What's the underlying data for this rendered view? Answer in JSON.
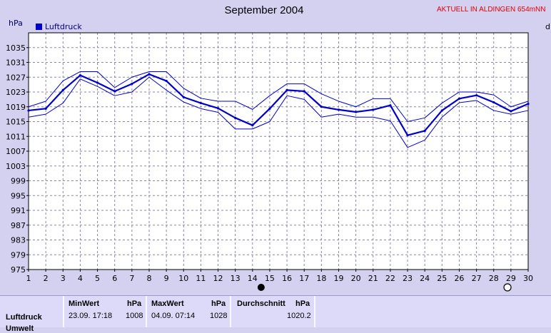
{
  "header": {
    "title": "September 2004",
    "brand": "AKTUELL IN ALDINGEN 654mNN",
    "edge_letter": "d"
  },
  "chart_data": {
    "type": "line",
    "title": "September 2004",
    "ylabel": "hPa",
    "xlabel": "",
    "ylim": [
      975,
      1039
    ],
    "yticks": [
      975,
      979,
      983,
      987,
      991,
      995,
      999,
      1003,
      1007,
      1011,
      1015,
      1019,
      1023,
      1027,
      1031,
      1035
    ],
    "x": [
      1,
      2,
      3,
      4,
      5,
      6,
      7,
      8,
      9,
      10,
      11,
      12,
      13,
      14,
      15,
      16,
      17,
      18,
      19,
      20,
      21,
      22,
      23,
      24,
      25,
      26,
      27,
      28,
      29,
      30
    ],
    "xlim": [
      1,
      30
    ],
    "legend": "top-left",
    "grid": true,
    "series": [
      {
        "name": "Luftdruck",
        "role": "mean",
        "color": "#0000cc",
        "values": [
          1018,
          1018.5,
          1023.5,
          1027.5,
          1025.5,
          1023.2,
          1025.2,
          1027.8,
          1026,
          1021.6,
          1020,
          1018.6,
          1016,
          1014,
          1018.5,
          1023.5,
          1023.2,
          1019,
          1018.2,
          1017.6,
          1018.2,
          1019.4,
          1011.3,
          1012.5,
          1018,
          1021.2,
          1022.1,
          1020.2,
          1017.8,
          1019.8
        ]
      },
      {
        "role": "max",
        "color": "#0000cc",
        "values": [
          1019,
          1020.5,
          1026,
          1028.5,
          1028.5,
          1024.2,
          1027,
          1028.5,
          1028.5,
          1024,
          1021.3,
          1020.5,
          1020.5,
          1018.3,
          1022,
          1025.2,
          1025.2,
          1022.5,
          1020.5,
          1019,
          1021.2,
          1021.2,
          1015,
          1016,
          1020,
          1023,
          1023,
          1022.2,
          1019,
          1020.5
        ]
      },
      {
        "role": "min",
        "color": "#0000cc",
        "values": [
          1016.2,
          1017,
          1020,
          1026.5,
          1024.5,
          1022,
          1023,
          1027,
          1023.5,
          1020.3,
          1018.5,
          1017.5,
          1013,
          1013,
          1015,
          1022,
          1021,
          1016.2,
          1017,
          1016.2,
          1016.2,
          1015.2,
          1008,
          1010,
          1016.2,
          1020.1,
          1020.7,
          1018,
          1017,
          1018
        ]
      }
    ],
    "markers": [
      {
        "x": 14.5,
        "symbol": "full-moon-filled"
      },
      {
        "x": 28.8,
        "symbol": "new-moon-open"
      }
    ]
  },
  "stats": {
    "row_label": "Luftdruck",
    "row_label_2": "Umwelt",
    "min_header": "MinWert",
    "min_unit": "hPa",
    "min_time": "23.09.  17:18",
    "min_value": "1008",
    "max_header": "MaxWert",
    "max_unit": "hPa",
    "max_time": "04.09.  07:14",
    "max_value": "1028",
    "avg_header": "Durchschnitt",
    "avg_unit": "hPa",
    "avg_value": "1020.2"
  }
}
